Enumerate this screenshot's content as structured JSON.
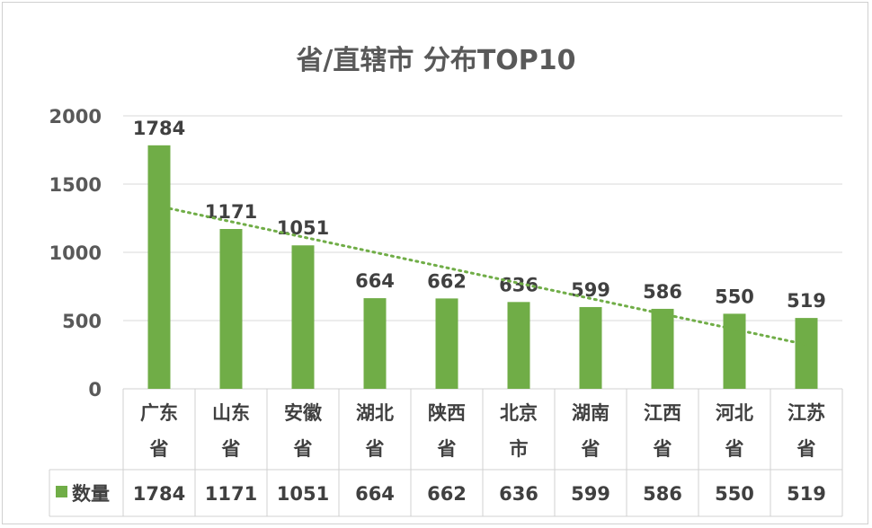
{
  "chart_data": {
    "type": "bar",
    "title": "省/直辖市 分布TOP10",
    "categories": [
      "广东省",
      "山东省",
      "安徽省",
      "湖北省",
      "陕西省",
      "北京市",
      "湖南省",
      "江西省",
      "河北省",
      "江苏省"
    ],
    "series": [
      {
        "name": "数量",
        "values": [
          1784,
          1171,
          1051,
          664,
          662,
          636,
          599,
          586,
          550,
          519
        ],
        "color": "#70ad47"
      }
    ],
    "ylim": [
      0,
      2000
    ],
    "yticks": [
      0,
      500,
      1000,
      1500,
      2000
    ],
    "grid": true,
    "data_labels": true,
    "trendline": {
      "type": "linear",
      "style": "dotted",
      "color": "#70ad47"
    },
    "data_table": true,
    "legend": "data-table"
  }
}
